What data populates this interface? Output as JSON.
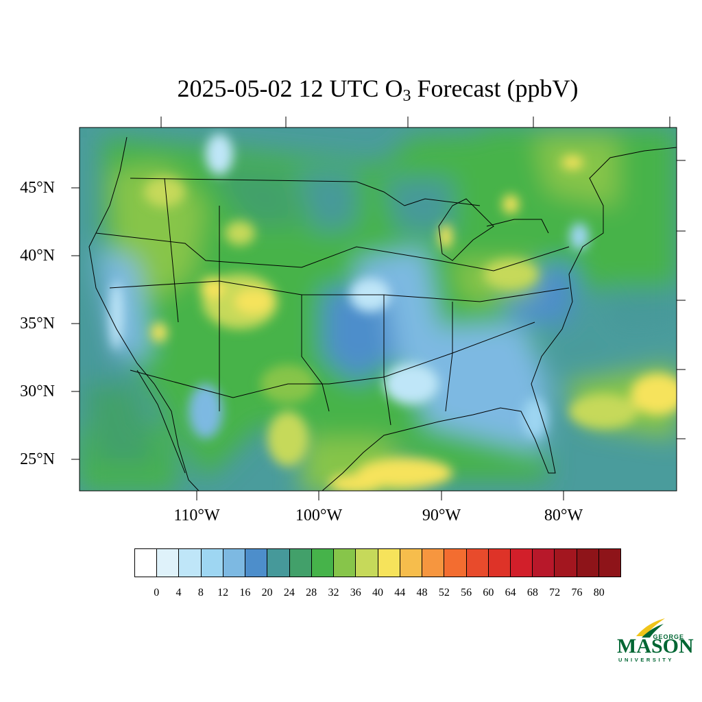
{
  "title": {
    "prefix": "2025-05-02 12 UTC O",
    "subscript": "3",
    "suffix": " Forecast (ppbV)"
  },
  "map": {
    "lat_labels": [
      "45°N",
      "40°N",
      "35°N",
      "30°N",
      "25°N"
    ],
    "lon_labels": [
      "110°W",
      "100°W",
      "90°W",
      "80°W"
    ],
    "extent": {
      "lon_min": -125,
      "lon_max": -66,
      "lat_min": 22.5,
      "lat_max": 50
    },
    "ocean_color": "#4a9c9c"
  },
  "colorbar": {
    "colors": [
      "#ffffff",
      "#dff2fa",
      "#bfe6f8",
      "#9ed6f2",
      "#7db9e2",
      "#4d8ecb",
      "#46999a",
      "#42a06a",
      "#46b34a",
      "#87c54a",
      "#c6d95a",
      "#f6e35b",
      "#f6bd4c",
      "#f6963f",
      "#f36d30",
      "#e84b2c",
      "#de3328",
      "#d21f2a",
      "#b8182a",
      "#a3161f",
      "#8e1419"
    ],
    "labels": [
      "0",
      "4",
      "8",
      "12",
      "16",
      "20",
      "24",
      "28",
      "32",
      "36",
      "40",
      "44",
      "48",
      "52",
      "56",
      "60",
      "64",
      "68",
      "72",
      "76",
      "80"
    ]
  },
  "logo": {
    "line1": "GEORGE",
    "line2": "MASON",
    "line3": "UNIVERSITY",
    "color": "#006633",
    "accent": "#f0c419"
  }
}
